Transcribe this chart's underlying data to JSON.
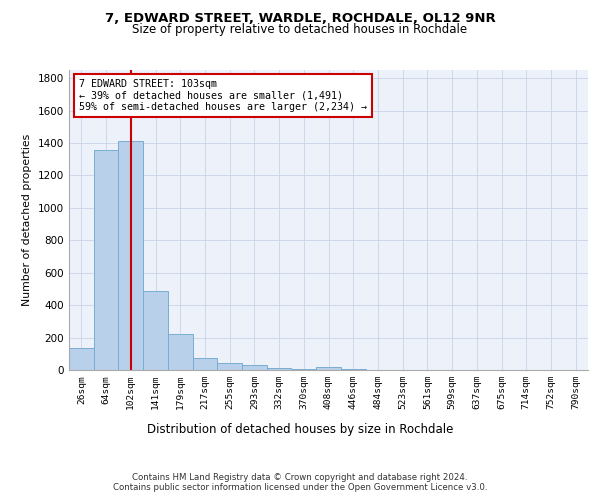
{
  "title_line1": "7, EDWARD STREET, WARDLE, ROCHDALE, OL12 9NR",
  "title_line2": "Size of property relative to detached houses in Rochdale",
  "xlabel": "Distribution of detached houses by size in Rochdale",
  "ylabel": "Number of detached properties",
  "bar_labels": [
    "26sqm",
    "64sqm",
    "102sqm",
    "141sqm",
    "179sqm",
    "217sqm",
    "255sqm",
    "293sqm",
    "332sqm",
    "370sqm",
    "408sqm",
    "446sqm",
    "484sqm",
    "523sqm",
    "561sqm",
    "599sqm",
    "637sqm",
    "675sqm",
    "714sqm",
    "752sqm",
    "790sqm"
  ],
  "bar_values": [
    135,
    1355,
    1410,
    490,
    225,
    75,
    45,
    28,
    15,
    5,
    20,
    5,
    0,
    0,
    0,
    0,
    0,
    0,
    0,
    0,
    0
  ],
  "bar_color": "#b8d0ea",
  "bar_edge_color": "#7aadd4",
  "vline_x": 2,
  "vline_color": "#cc0000",
  "annotation_text": "7 EDWARD STREET: 103sqm\n← 39% of detached houses are smaller (1,491)\n59% of semi-detached houses are larger (2,234) →",
  "annotation_box_color": "#cc0000",
  "ylim": [
    0,
    1850
  ],
  "yticks": [
    0,
    200,
    400,
    600,
    800,
    1000,
    1200,
    1400,
    1600,
    1800
  ],
  "background_color": "#edf2fa",
  "grid_color": "#c8d4e8",
  "footer_line1": "Contains HM Land Registry data © Crown copyright and database right 2024.",
  "footer_line2": "Contains public sector information licensed under the Open Government Licence v3.0."
}
